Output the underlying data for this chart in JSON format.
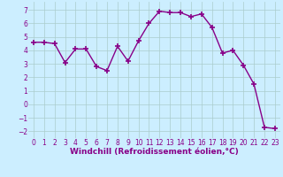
{
  "x": [
    0,
    1,
    2,
    3,
    4,
    5,
    6,
    7,
    8,
    9,
    10,
    11,
    12,
    13,
    14,
    15,
    16,
    17,
    18,
    19,
    20,
    21,
    22,
    23
  ],
  "y": [
    4.6,
    4.6,
    4.5,
    3.1,
    4.1,
    4.1,
    2.8,
    2.5,
    4.3,
    3.2,
    4.7,
    6.0,
    6.9,
    6.8,
    6.8,
    6.5,
    6.7,
    5.7,
    3.8,
    4.0,
    2.9,
    1.5,
    -1.7,
    -1.8
  ],
  "line_color": "#880088",
  "marker": "+",
  "marker_size": 4,
  "marker_lw": 1.2,
  "bg_color": "#cceeff",
  "grid_color": "#aacccc",
  "xlabel": "Windchill (Refroidissement éolien,°C)",
  "xlabel_color": "#880088",
  "ylim": [
    -2.5,
    7.6
  ],
  "xlim": [
    -0.5,
    23.5
  ],
  "yticks": [
    -2,
    -1,
    0,
    1,
    2,
    3,
    4,
    5,
    6,
    7
  ],
  "xticks": [
    0,
    1,
    2,
    3,
    4,
    5,
    6,
    7,
    8,
    9,
    10,
    11,
    12,
    13,
    14,
    15,
    16,
    17,
    18,
    19,
    20,
    21,
    22,
    23
  ],
  "tick_label_color": "#880088",
  "tick_label_size": 5.5,
  "xlabel_size": 6.5,
  "linewidth": 1.0
}
